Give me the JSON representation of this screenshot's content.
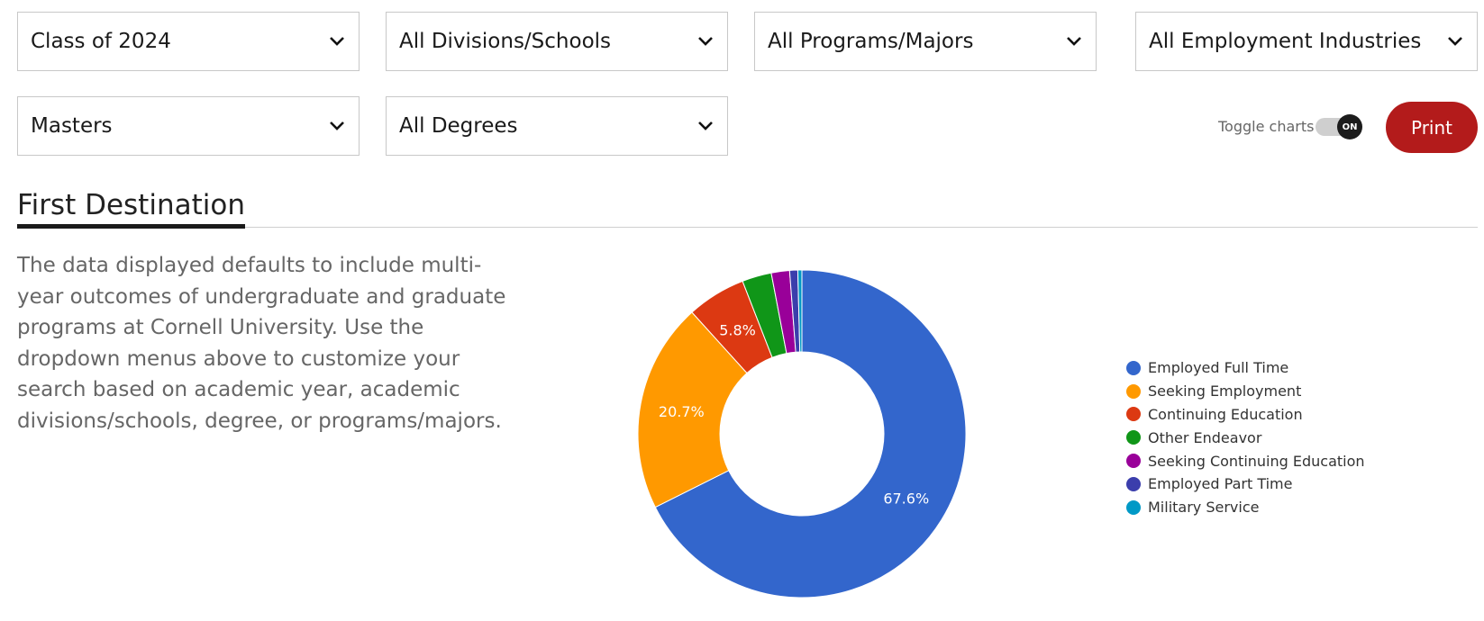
{
  "filters": [
    {
      "value": "Class of 2024"
    },
    {
      "value": "All Divisions/Schools"
    },
    {
      "value": "All Programs/Majors"
    },
    {
      "value": "All Employment Industries"
    },
    {
      "value": "Masters"
    },
    {
      "value": "All Degrees"
    }
  ],
  "controls": {
    "toggle_label": "Toggle charts",
    "toggle_state": "ON",
    "print_label": "Print"
  },
  "section": {
    "title": "First Destination",
    "description": "The data displayed defaults to include multi-year outcomes of undergraduate and graduate programs at Cornell University. Use the dropdown menus above to customize your search based on academic year, academic divisions/schools, degree, or programs/majors."
  },
  "chart_data": {
    "type": "pie",
    "donut": true,
    "legend_position": "right",
    "categories": [
      "Employed Full Time",
      "Seeking Employment",
      "Continuing Education",
      "Other Endeavor",
      "Seeking Continuing Education",
      "Employed Part Time",
      "Military Service"
    ],
    "values": [
      67.6,
      20.7,
      5.8,
      2.9,
      1.8,
      0.8,
      0.4
    ],
    "labels": [
      "67.6%",
      "20.7%",
      "5.8%",
      "",
      "",
      "",
      ""
    ],
    "colors": [
      "#3366cc",
      "#ff9900",
      "#dc3912",
      "#109618",
      "#990099",
      "#3b3eac",
      "#0099c6"
    ]
  }
}
